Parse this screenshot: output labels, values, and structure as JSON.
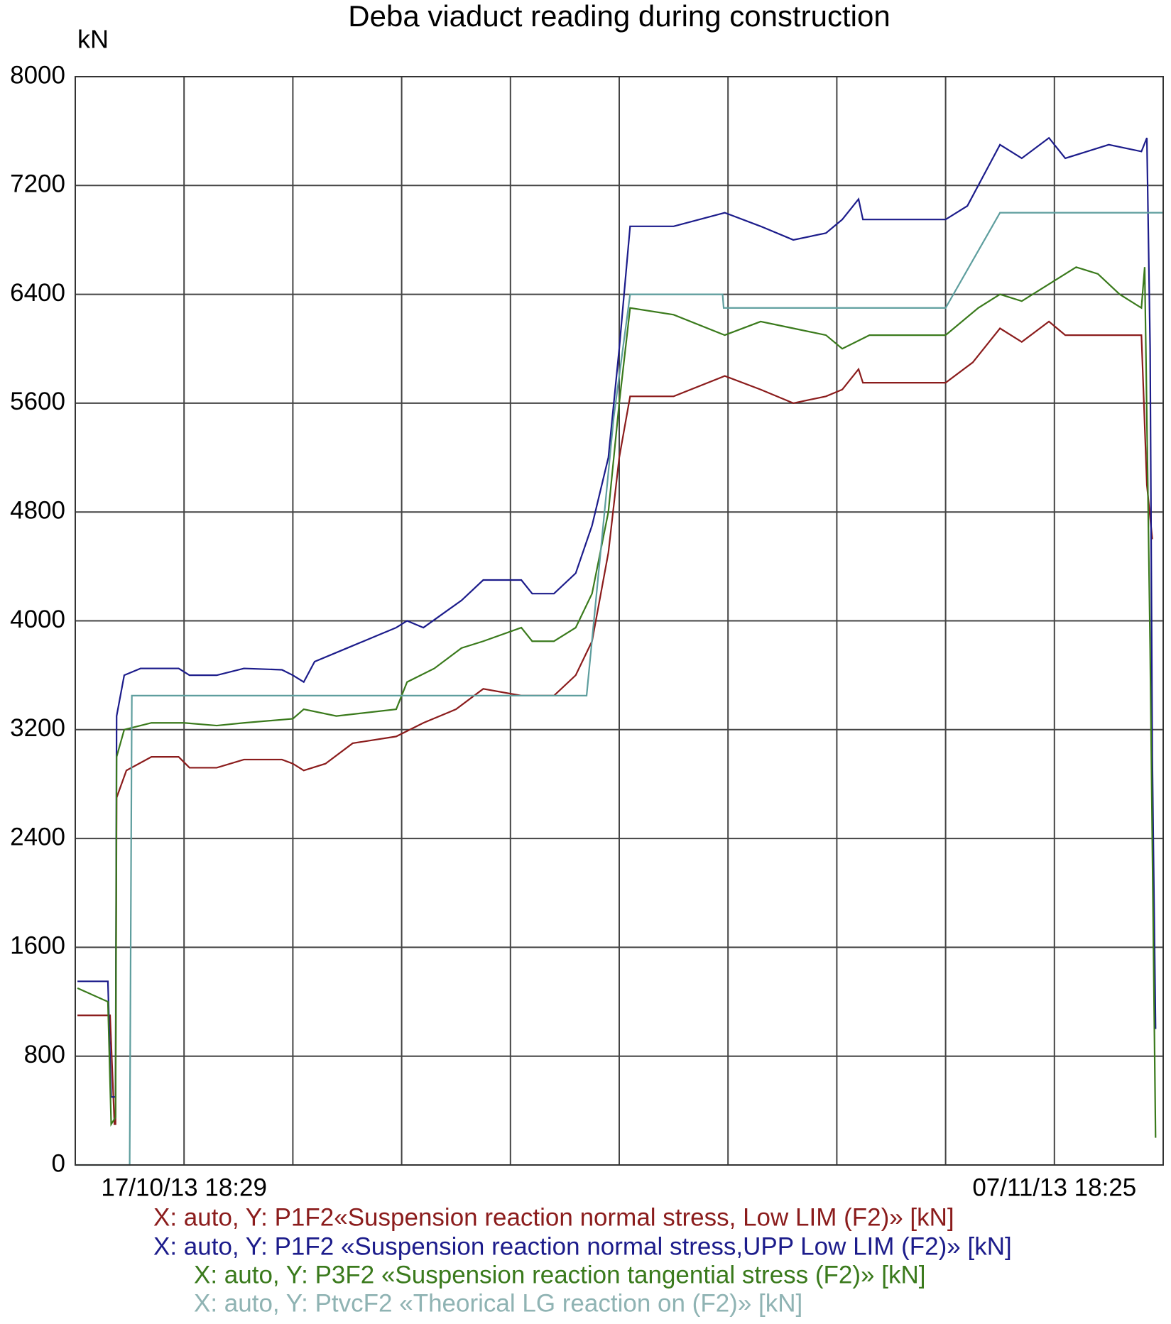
{
  "chart_data": {
    "type": "line",
    "title": "Deba viaduct reading during construction",
    "y_label": "kN",
    "xlim": [
      0,
      10
    ],
    "xticks": [
      {
        "value": 1,
        "label": "17/10/13  18:29"
      },
      {
        "value": 9,
        "label": "07/11/13  18:25"
      }
    ],
    "ylim": [
      0,
      8000
    ],
    "yticks": [
      0,
      800,
      1600,
      2400,
      3200,
      4000,
      4800,
      5600,
      6400,
      7200,
      8000
    ],
    "grid": true,
    "series": [
      {
        "name": "X: auto, Y: P1F2«Suspension reaction normal stress, Low LIM (F2)» [kN]",
        "color": "#8b1c1c",
        "x": [
          0.02,
          0.3,
          0.32,
          0.36,
          0.37,
          0.38,
          0.47,
          0.7,
          0.95,
          1.05,
          1.3,
          1.55,
          1.9,
          2.0,
          2.1,
          2.3,
          2.55,
          2.95,
          3.2,
          3.5,
          3.75,
          4.1,
          4.4,
          4.6,
          4.75,
          4.9,
          5.0,
          5.1,
          5.5,
          5.97,
          6.3,
          6.6,
          6.9,
          7.05,
          7.2,
          7.24,
          7.7,
          8.0,
          8.25,
          8.5,
          8.7,
          8.95,
          9.1,
          9.5,
          9.8,
          9.85,
          9.9
        ],
        "values": [
          1100,
          1100,
          1100,
          300,
          300,
          2700,
          2900,
          3000,
          3000,
          2920,
          2920,
          2980,
          2980,
          2950,
          2900,
          2950,
          3100,
          3150,
          3250,
          3350,
          3500,
          3450,
          3450,
          3600,
          3850,
          4500,
          5200,
          5650,
          5650,
          5800,
          5700,
          5600,
          5650,
          5700,
          5850,
          5750,
          5750,
          5750,
          5900,
          6150,
          6050,
          6200,
          6100,
          6100,
          6100,
          5000,
          4600
        ]
      },
      {
        "name": "X: auto, Y: P1F2 «Suspension reaction normal stress,UPP Low LIM (F2)» [kN]",
        "color": "#1c1c8b",
        "x": [
          0.02,
          0.3,
          0.33,
          0.37,
          0.38,
          0.45,
          0.6,
          0.95,
          1.05,
          1.3,
          1.55,
          1.9,
          2.0,
          2.1,
          2.2,
          2.5,
          2.8,
          2.95,
          3.05,
          3.2,
          3.55,
          3.75,
          4.1,
          4.2,
          4.4,
          4.6,
          4.75,
          4.9,
          5.0,
          5.1,
          5.5,
          5.97,
          6.3,
          6.6,
          6.9,
          7.05,
          7.2,
          7.24,
          7.7,
          8.0,
          8.2,
          8.5,
          8.7,
          8.95,
          9.1,
          9.5,
          9.8,
          9.85,
          9.88,
          9.9,
          9.93
        ],
        "values": [
          1350,
          1350,
          500,
          500,
          3300,
          3600,
          3650,
          3650,
          3600,
          3600,
          3650,
          3640,
          3600,
          3550,
          3700,
          3800,
          3900,
          3950,
          4000,
          3950,
          4150,
          4300,
          4300,
          4200,
          4200,
          4350,
          4700,
          5200,
          6000,
          6900,
          6900,
          7000,
          6900,
          6800,
          6850,
          6950,
          7100,
          6950,
          6950,
          6950,
          7050,
          7500,
          7400,
          7550,
          7400,
          7500,
          7450,
          7550,
          6000,
          3000,
          1000
        ]
      },
      {
        "name": "X: auto, Y: P3F2 «Suspension reaction tangential stress (F2)» [kN]",
        "color": "#3a7a1c",
        "x": [
          0.02,
          0.3,
          0.33,
          0.37,
          0.38,
          0.45,
          0.7,
          1.0,
          1.3,
          1.55,
          2.0,
          2.1,
          2.4,
          2.95,
          3.05,
          3.3,
          3.55,
          3.75,
          4.1,
          4.2,
          4.4,
          4.6,
          4.75,
          4.9,
          5.0,
          5.1,
          5.5,
          5.97,
          6.3,
          6.6,
          6.9,
          7.05,
          7.3,
          7.7,
          8.0,
          8.3,
          8.5,
          8.7,
          9.0,
          9.2,
          9.4,
          9.6,
          9.8,
          9.83,
          9.88,
          9.93
        ],
        "values": [
          1300,
          1200,
          300,
          350,
          3000,
          3200,
          3250,
          3250,
          3230,
          3250,
          3280,
          3350,
          3300,
          3350,
          3550,
          3650,
          3800,
          3850,
          3950,
          3850,
          3850,
          3950,
          4200,
          4800,
          5600,
          6300,
          6250,
          6100,
          6200,
          6150,
          6100,
          6000,
          6100,
          6100,
          6100,
          6300,
          6400,
          6350,
          6500,
          6600,
          6550,
          6400,
          6300,
          6600,
          3800,
          200
        ]
      },
      {
        "name": "X: auto, Y: PtvcF2 «Theorical LG reaction on (F2)» [kN]",
        "color": "#5e9e9e",
        "label_color": "#8fb3b3",
        "x": [
          0,
          0.5,
          0.52,
          2.0,
          4.7,
          4.95,
          5.1,
          5.95,
          5.96,
          8.0,
          8.5,
          9.2,
          9.75,
          10
        ],
        "values": [
          0,
          0,
          3450,
          3450,
          3450,
          5500,
          6400,
          6400,
          6300,
          6300,
          7000,
          7000,
          7000,
          7000
        ]
      }
    ]
  }
}
